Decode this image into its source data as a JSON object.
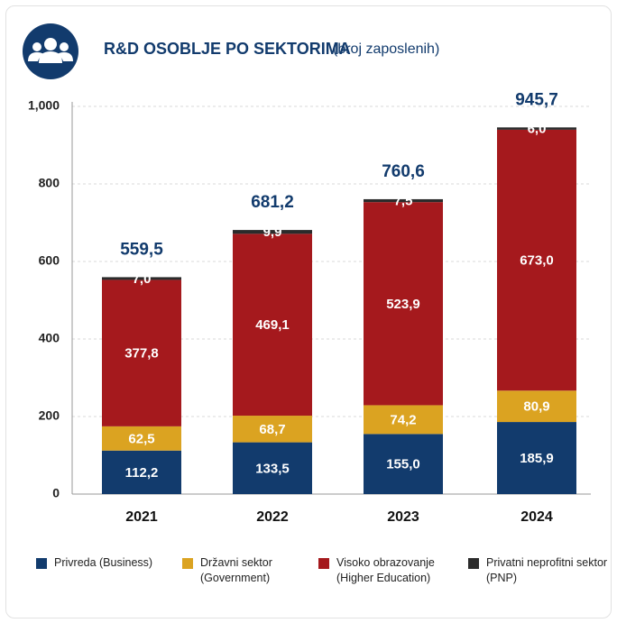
{
  "chart_data": {
    "type": "stacked_bar",
    "title": "R&D OSOBLJE PO SEKTORIMA",
    "subtitle": "(broj zaposlenih)",
    "categories": [
      "2021",
      "2022",
      "2023",
      "2024"
    ],
    "series": [
      {
        "name": "Privreda (Business)",
        "color": "#123b6d",
        "values": [
          112.2,
          133.5,
          155.0,
          185.9
        ],
        "value_labels": [
          "112,2",
          "133,5",
          "155,0",
          "185,9"
        ]
      },
      {
        "name": "Državni sektor (Government)",
        "color": "#dba321",
        "values": [
          62.5,
          68.7,
          74.2,
          80.9
        ],
        "value_labels": [
          "62,5",
          "68,7",
          "74,2",
          "80,9"
        ]
      },
      {
        "name": "Visoko obrazovanje (Higher Education)",
        "color": "#a5191d",
        "values": [
          377.8,
          469.1,
          523.9,
          673.0
        ],
        "value_labels": [
          "377,8",
          "469,1",
          "523,9",
          "673,0"
        ]
      },
      {
        "name": "Privatni neprofitni sektor (PNP)",
        "color": "#2b2b2b",
        "values": [
          7.0,
          9.9,
          7.5,
          6.0
        ],
        "value_labels": [
          "7,0",
          "9,9",
          "7,5",
          "6,0"
        ]
      }
    ],
    "totals": [
      559.5,
      681.2,
      760.6,
      945.7
    ],
    "total_labels": [
      "559,5",
      "681,2",
      "760,6",
      "945,7"
    ],
    "ylim": [
      0,
      1000
    ],
    "yticks": [
      0,
      200,
      400,
      600,
      800,
      {
        "value": 1000,
        "label": "1,000"
      }
    ],
    "grid": true
  }
}
